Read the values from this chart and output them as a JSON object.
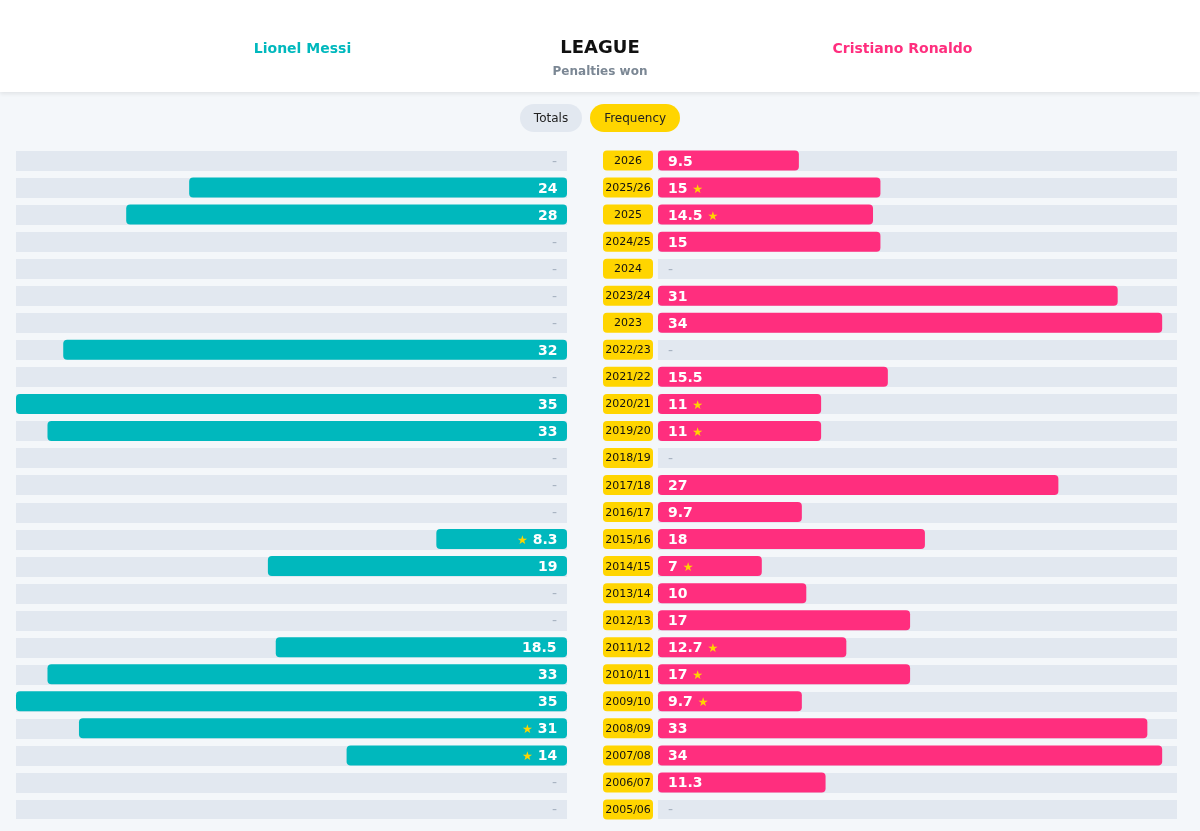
{
  "chart_data": [
    {
      "type": "bar",
      "orientation": "horizontal",
      "title": "LEAGUE",
      "subtitle": "Penalties won",
      "annotations": [
        "Totals",
        "Frequency"
      ],
      "categories": [
        "2026",
        "2025/26",
        "2025",
        "2024/25",
        "2024",
        "2023/24",
        "2023",
        "2022/23",
        "2021/22",
        "2020/21",
        "2019/20",
        "2018/19",
        "2017/18",
        "2016/17",
        "2015/16",
        "2014/15",
        "2013/14",
        "2012/13",
        "2011/12",
        "2010/11",
        "2009/10",
        "2008/09",
        "2007/08",
        "2006/07",
        "2005/06"
      ],
      "series": [
        {
          "name": "Lionel Messi",
          "color": "#00b8bd",
          "values": [
            null,
            24,
            28,
            null,
            null,
            null,
            null,
            32,
            null,
            35,
            33,
            null,
            null,
            null,
            8.3,
            19,
            null,
            null,
            18.5,
            33,
            35,
            31,
            14,
            null,
            null
          ],
          "value_labels": [
            "-",
            "24",
            "28",
            "-",
            "-",
            "-",
            "-",
            "32",
            "-",
            "35",
            "33",
            "-",
            "-",
            "-",
            "★ 8.3",
            "19",
            "-",
            "-",
            "18.5",
            "33",
            "35",
            "★ 31",
            "★ 14",
            "-",
            "-"
          ]
        }
      ],
      "xlim": [
        35,
        0
      ],
      "legend": "top",
      "tick_labels": false
    },
    {
      "type": "bar",
      "orientation": "horizontal",
      "categories": [
        "2026",
        "2025/26",
        "2025",
        "2024/25",
        "2024",
        "2023/24",
        "2023",
        "2022/23",
        "2021/22",
        "2020/21",
        "2019/20",
        "2018/19",
        "2017/18",
        "2016/17",
        "2015/16",
        "2014/15",
        "2013/14",
        "2012/13",
        "2011/12",
        "2010/11",
        "2009/10",
        "2008/09",
        "2007/08",
        "2006/07",
        "2005/06"
      ],
      "series": [
        {
          "name": "Cristiano Ronaldo",
          "color": "#ff2e7e",
          "values": [
            9.5,
            15,
            14.5,
            15,
            null,
            31,
            34,
            null,
            15.5,
            11,
            11,
            null,
            27,
            9.7,
            18,
            7,
            10,
            17,
            12.7,
            17,
            9.7,
            33,
            34,
            11.3,
            null
          ],
          "value_labels": [
            "9.5",
            "15 ★",
            "14.5 ★",
            "15",
            "-",
            "31",
            "34",
            "-",
            "15.5",
            "11 ★",
            "11 ★",
            "-",
            "27",
            "9.7",
            "18",
            "7 ★",
            "10",
            "17",
            "12.7 ★",
            "17 ★",
            "9.7 ★",
            "33",
            "34",
            "11.3",
            "-"
          ]
        }
      ],
      "xlim": [
        0,
        35
      ],
      "legend": "top",
      "tick_labels": "y"
    }
  ]
}
